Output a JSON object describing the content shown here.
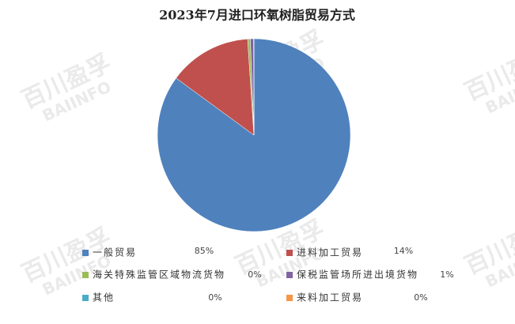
{
  "chart_data": {
    "type": "pie",
    "title": "2023年7月进口环氧树脂贸易方式",
    "watermark": [
      "百川盈孚",
      "BAIINFO"
    ],
    "categories": [
      "一般贸易",
      "进料加工贸易",
      "海关特殊监管区域物流货物",
      "保税监管场所进出境货物",
      "其他",
      "来料加工贸易"
    ],
    "values": [
      85.1,
      13.9,
      0.44,
      0.55,
      0.03,
      0.02
    ],
    "value_labels": [
      "85%",
      "14%",
      "0%",
      "1%",
      "0%",
      "0%"
    ],
    "colors": [
      "#4f81bd",
      "#c0504d",
      "#9bbb59",
      "#8064a2",
      "#4bacc6",
      "#f79646"
    ]
  }
}
